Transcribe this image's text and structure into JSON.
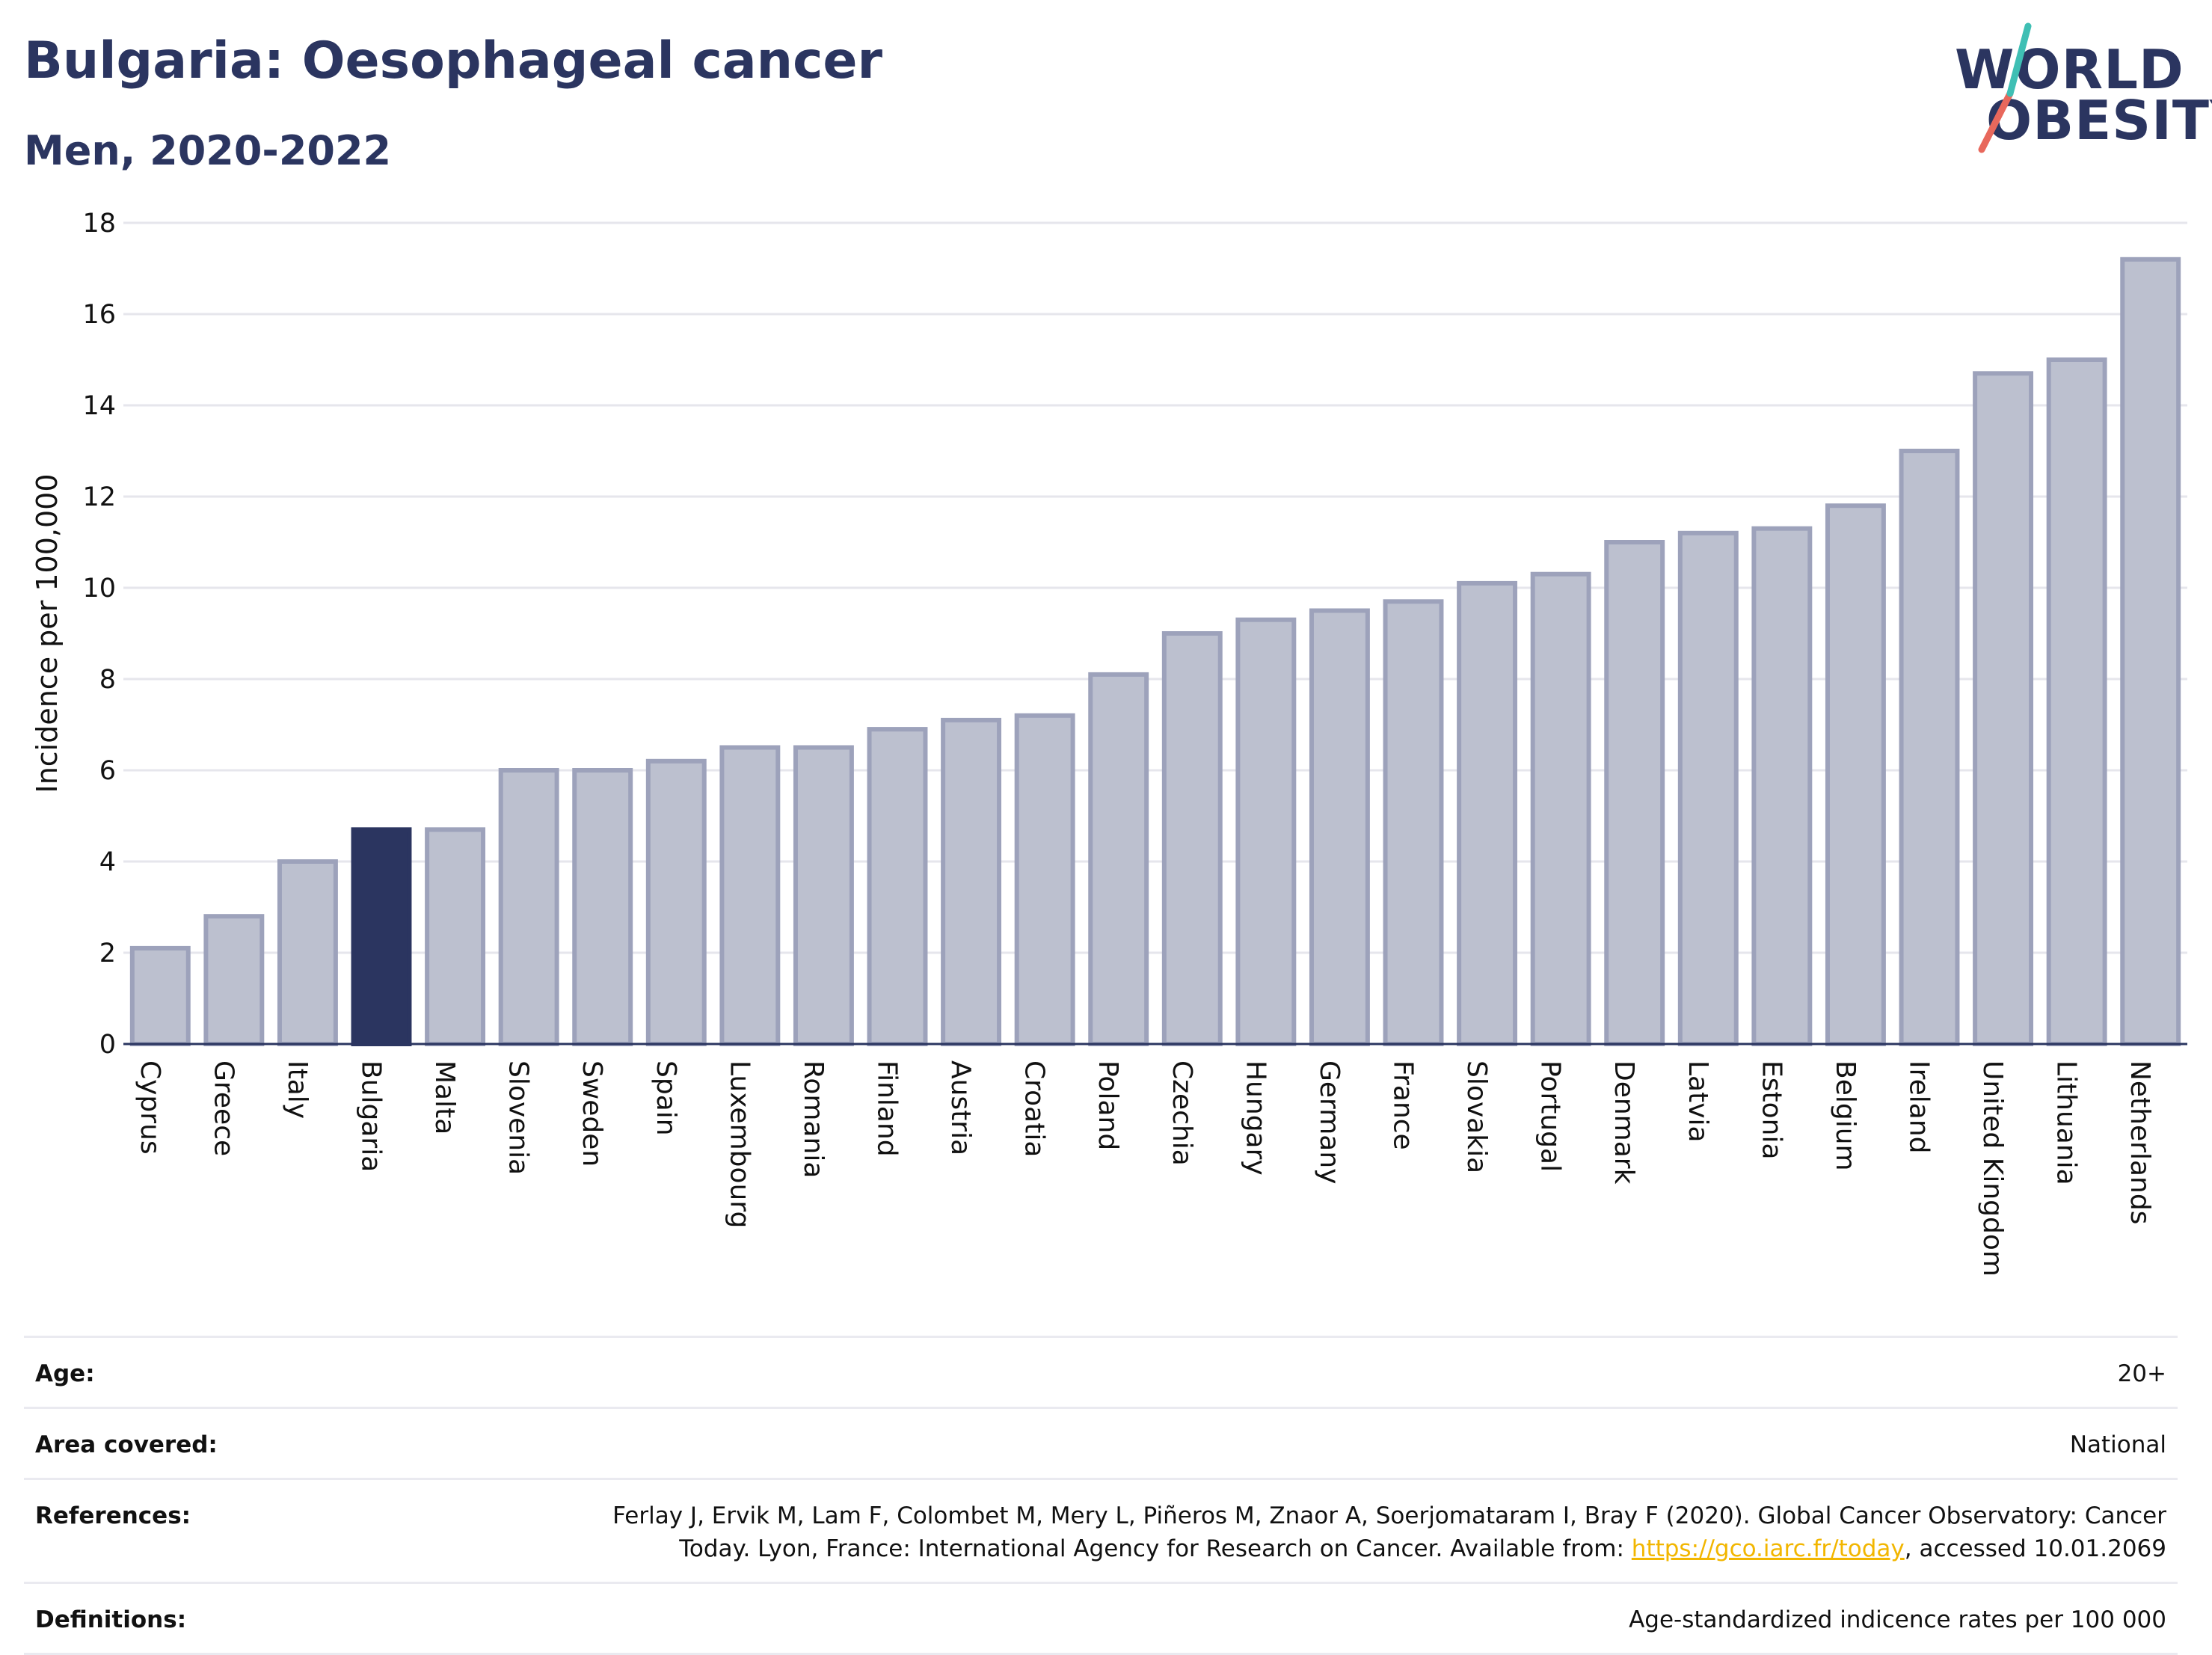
{
  "header": {
    "title": "Bulgaria: Oesophageal cancer",
    "subtitle": "Men, 2020-2022"
  },
  "logo": {
    "line1": "WORLD",
    "line2": "OBESITY"
  },
  "chart_data": {
    "type": "bar",
    "ylabel": "Incidence per 100,000",
    "xlabel": "",
    "ylim": [
      0,
      18
    ],
    "yticks": [
      0,
      2,
      4,
      6,
      8,
      10,
      12,
      14,
      16,
      18
    ],
    "grid": true,
    "highlight": "Bulgaria",
    "colors": {
      "bar": "#bcc0cf",
      "bar_edge": "#9da2bb",
      "highlight": "#2b3560"
    },
    "categories": [
      "Cyprus",
      "Greece",
      "Italy",
      "Bulgaria",
      "Malta",
      "Slovenia",
      "Sweden",
      "Spain",
      "Luxembourg",
      "Romania",
      "Finland",
      "Austria",
      "Croatia",
      "Poland",
      "Czechia",
      "Hungary",
      "Germany",
      "France",
      "Slovakia",
      "Portugal",
      "Denmark",
      "Latvia",
      "Estonia",
      "Belgium",
      "Ireland",
      "United Kingdom",
      "Lithuania",
      "Netherlands"
    ],
    "values": [
      2.1,
      2.8,
      4.0,
      4.7,
      4.7,
      6.0,
      6.0,
      6.2,
      6.5,
      6.5,
      6.9,
      7.1,
      7.2,
      8.1,
      9.0,
      9.3,
      9.5,
      9.7,
      10.1,
      10.3,
      11.0,
      11.2,
      11.3,
      11.8,
      13.0,
      14.7,
      15.0,
      17.2
    ]
  },
  "meta": {
    "age_label": "Age:",
    "age_value": "20+",
    "area_label": "Area covered:",
    "area_value": "National",
    "references_label": "References:",
    "references_text": "Ferlay J, Ervik M, Lam F, Colombet M, Mery L, Piñeros M, Znaor A, Soerjomataram I, Bray F (2020). Global Cancer Observatory: Cancer Today. Lyon, France: International Agency for Research on Cancer. Available from: ",
    "references_link": "https://gco.iarc.fr/today",
    "references_suffix": ", accessed 10.01.2069",
    "definitions_label": "Definitions:",
    "definitions_value": "Age-standardized indicence rates per 100 000"
  }
}
